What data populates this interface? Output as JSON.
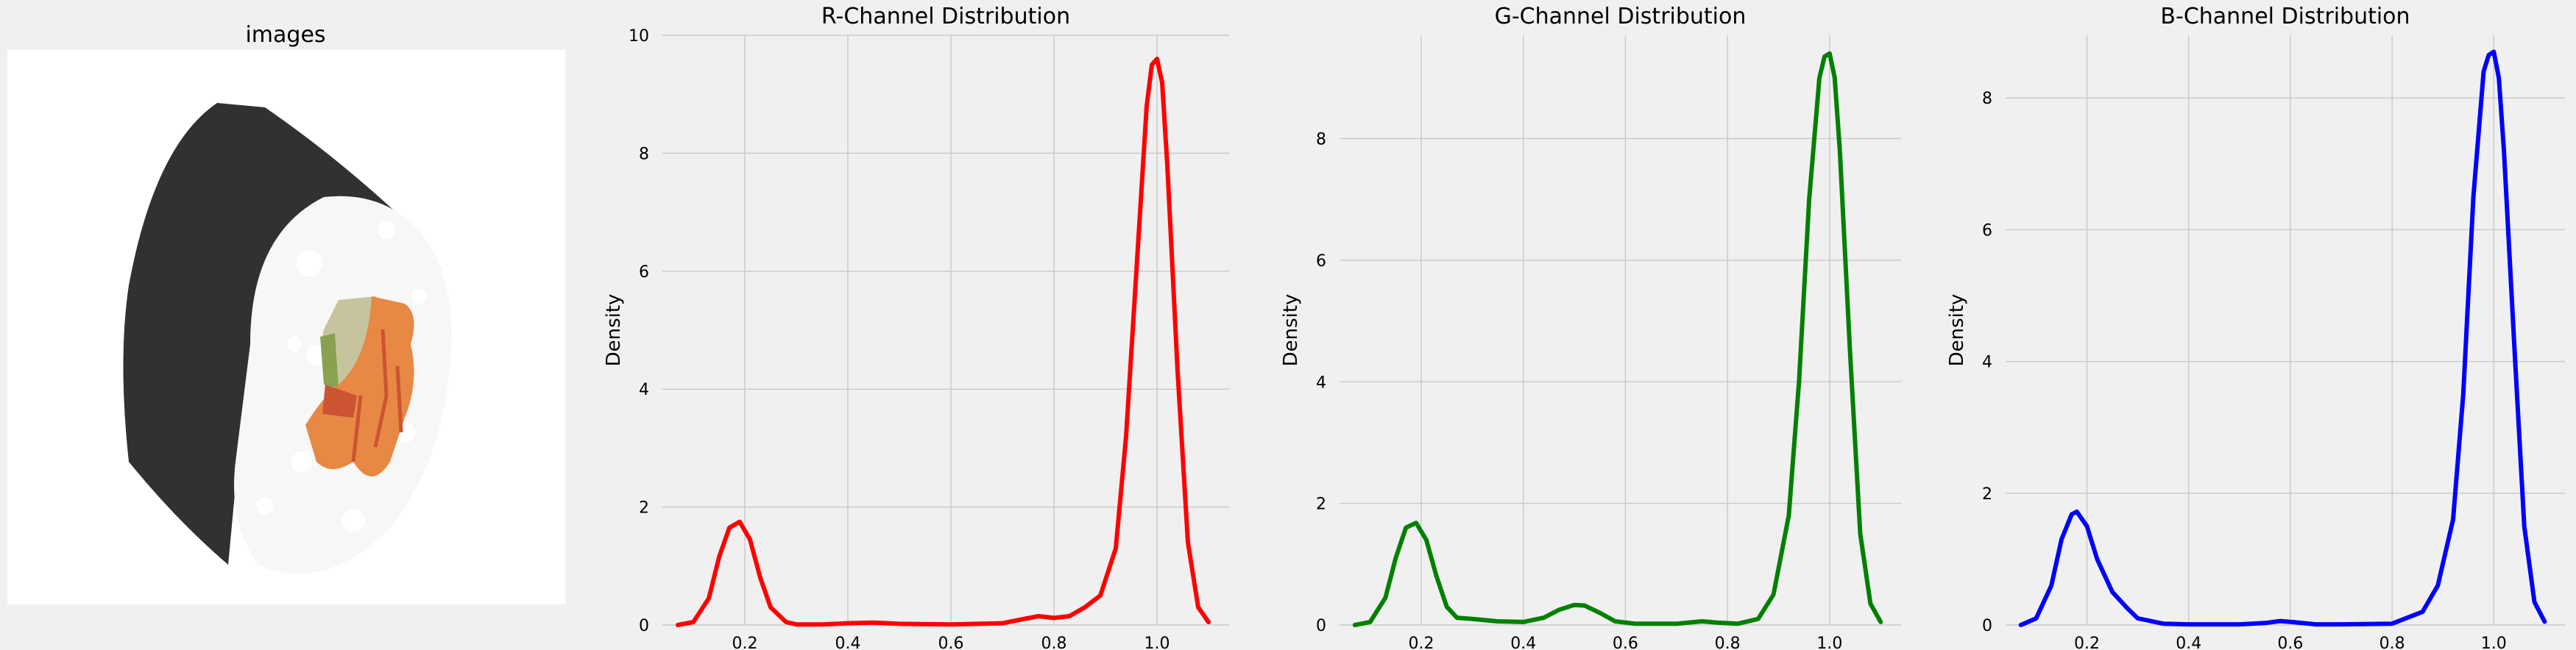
{
  "colors": {
    "figure_bg": "#f0f0f0",
    "axes_bg": "#f0f0f0",
    "grid": "#cbcbcb"
  },
  "image_panel": {
    "title": "images",
    "subject": "pixel-art sushi roll",
    "palette": {
      "nori": "#323130",
      "rice": "#f7f7f5",
      "salmon": "#e88845",
      "salmon_dark": "#cc5432",
      "cucumber": "#c6c49d",
      "cucumber_skin": "#8aa150"
    }
  },
  "chart_data": [
    {
      "type": "line",
      "title": "R-Channel Distribution",
      "xlabel": "",
      "ylabel": "Density",
      "color": "#ff0000",
      "xlim": [
        0.04,
        1.14
      ],
      "ylim": [
        0,
        10.0
      ],
      "xticks": [
        0.2,
        0.4,
        0.6,
        0.8,
        1.0
      ],
      "xtick_labels": [
        "0.2",
        "0.4",
        "0.6",
        "0.8",
        "1.0"
      ],
      "yticks": [
        0,
        2,
        4,
        6,
        8,
        10
      ],
      "ytick_labels": [
        "0",
        "2",
        "4",
        "6",
        "8",
        "10"
      ],
      "grid": true,
      "x": [
        0.07,
        0.1,
        0.13,
        0.15,
        0.17,
        0.19,
        0.21,
        0.23,
        0.25,
        0.28,
        0.3,
        0.35,
        0.4,
        0.45,
        0.5,
        0.6,
        0.7,
        0.74,
        0.77,
        0.8,
        0.83,
        0.86,
        0.89,
        0.92,
        0.94,
        0.96,
        0.98,
        0.99,
        1.0,
        1.01,
        1.02,
        1.04,
        1.06,
        1.08,
        1.1
      ],
      "y": [
        0.0,
        0.05,
        0.45,
        1.15,
        1.65,
        1.75,
        1.45,
        0.8,
        0.3,
        0.05,
        0.01,
        0.01,
        0.03,
        0.04,
        0.02,
        0.01,
        0.03,
        0.1,
        0.15,
        0.12,
        0.15,
        0.3,
        0.5,
        1.3,
        3.2,
        6.0,
        8.8,
        9.5,
        9.6,
        9.2,
        7.8,
        4.3,
        1.4,
        0.3,
        0.05
      ]
    },
    {
      "type": "line",
      "title": "G-Channel Distribution",
      "xlabel": "",
      "ylabel": "Density",
      "color": "#008000",
      "xlim": [
        0.04,
        1.14
      ],
      "ylim": [
        0,
        9.7
      ],
      "xticks": [
        0.2,
        0.4,
        0.6,
        0.8,
        1.0
      ],
      "xtick_labels": [
        "0.2",
        "0.4",
        "0.6",
        "0.8",
        "1.0"
      ],
      "yticks": [
        0,
        2,
        4,
        6,
        8
      ],
      "ytick_labels": [
        "0",
        "2",
        "4",
        "6",
        "8"
      ],
      "grid": true,
      "x": [
        0.07,
        0.1,
        0.13,
        0.15,
        0.17,
        0.19,
        0.21,
        0.23,
        0.25,
        0.27,
        0.3,
        0.35,
        0.4,
        0.44,
        0.47,
        0.5,
        0.52,
        0.55,
        0.58,
        0.62,
        0.7,
        0.75,
        0.78,
        0.82,
        0.86,
        0.89,
        0.92,
        0.94,
        0.96,
        0.98,
        0.99,
        1.0,
        1.01,
        1.02,
        1.04,
        1.06,
        1.08,
        1.1
      ],
      "y": [
        0.0,
        0.05,
        0.45,
        1.1,
        1.6,
        1.68,
        1.4,
        0.8,
        0.3,
        0.12,
        0.1,
        0.06,
        0.05,
        0.12,
        0.25,
        0.33,
        0.32,
        0.2,
        0.06,
        0.02,
        0.02,
        0.06,
        0.04,
        0.02,
        0.1,
        0.5,
        1.8,
        4.0,
        7.0,
        9.0,
        9.35,
        9.4,
        9.0,
        7.8,
        4.5,
        1.5,
        0.35,
        0.05
      ]
    },
    {
      "type": "line",
      "title": "B-Channel Distribution",
      "xlabel": "",
      "ylabel": "Density",
      "color": "#0000ff",
      "xlim": [
        0.04,
        1.14
      ],
      "ylim": [
        0,
        8.95
      ],
      "xticks": [
        0.2,
        0.4,
        0.6,
        0.8,
        1.0
      ],
      "xtick_labels": [
        "0.2",
        "0.4",
        "0.6",
        "0.8",
        "1.0"
      ],
      "yticks": [
        0,
        2,
        4,
        6,
        8
      ],
      "ytick_labels": [
        "0",
        "2",
        "4",
        "6",
        "8"
      ],
      "grid": true,
      "x": [
        0.07,
        0.1,
        0.13,
        0.15,
        0.17,
        0.18,
        0.2,
        0.22,
        0.25,
        0.28,
        0.3,
        0.35,
        0.4,
        0.5,
        0.55,
        0.58,
        0.61,
        0.65,
        0.7,
        0.8,
        0.86,
        0.89,
        0.92,
        0.94,
        0.96,
        0.98,
        0.99,
        1.0,
        1.01,
        1.02,
        1.04,
        1.06,
        1.08,
        1.1
      ],
      "y": [
        0.0,
        0.1,
        0.6,
        1.3,
        1.68,
        1.72,
        1.5,
        1.0,
        0.5,
        0.25,
        0.1,
        0.02,
        0.01,
        0.01,
        0.03,
        0.06,
        0.04,
        0.01,
        0.01,
        0.02,
        0.2,
        0.6,
        1.6,
        3.5,
        6.5,
        8.4,
        8.65,
        8.7,
        8.3,
        7.2,
        4.3,
        1.5,
        0.35,
        0.05
      ]
    }
  ]
}
